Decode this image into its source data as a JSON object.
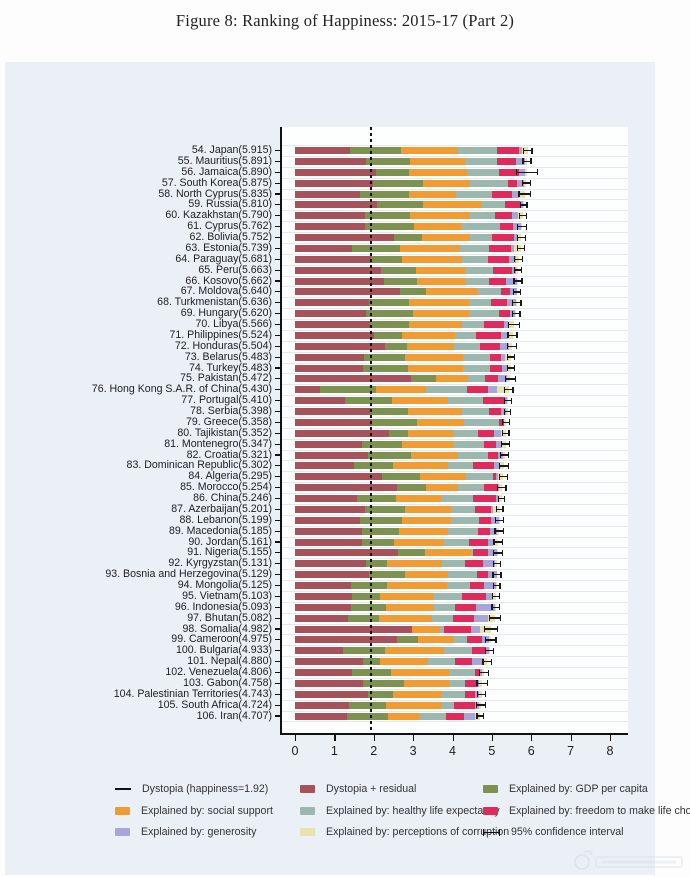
{
  "figure": {
    "title": "Figure 8: Ranking of Happiness: 2015-17 (Part 2)"
  },
  "legend": {
    "columns": [
      [
        {
          "label": "Dystopia (happiness=1.92)",
          "swatch": "line"
        },
        {
          "label": "Explained by: social support",
          "swatch": "box",
          "color": "#f19c33"
        },
        {
          "label": "Explained by: generosity",
          "swatch": "box",
          "color": "#a9a5d9"
        }
      ],
      [
        {
          "label": "Dystopia + residual",
          "swatch": "box",
          "color": "#a5525a"
        },
        {
          "label": "Explained by: healthy life expectancy",
          "swatch": "box",
          "color": "#9cb7ad"
        },
        {
          "label": "Explained by: perceptions of corruption",
          "swatch": "box",
          "color": "#e8e2ae"
        }
      ],
      [
        {
          "label": "Explained by: GDP per capita",
          "swatch": "box",
          "color": "#7d9150"
        },
        {
          "label": "Explained by: freedom to make life choices",
          "swatch": "box",
          "color": "#e12a5c"
        },
        {
          "label": "95% confidence interval",
          "swatch": "whisker"
        }
      ]
    ]
  },
  "chart_data": {
    "type": "bar",
    "orientation": "horizontal-stacked",
    "title": "Figure 8: Ranking of Happiness: 2015-17 (Part 2)",
    "xlabel": "",
    "ylabel": "",
    "xlim": [
      0,
      8.45
    ],
    "xticks": [
      0,
      1,
      2,
      3,
      4,
      5,
      6,
      7,
      8
    ],
    "grid": "horizontal-light",
    "dystopia_reference_line": 1.92,
    "segment_keys": [
      "dystopia_residual",
      "gdp_per_capita",
      "social_support",
      "healthy_life_expectancy",
      "freedom",
      "generosity",
      "corruption"
    ],
    "segment_colors": {
      "dystopia_residual": "#a5525a",
      "gdp_per_capita": "#7d9150",
      "social_support": "#f19c33",
      "healthy_life_expectancy": "#9cb7ad",
      "freedom": "#e12a5c",
      "generosity": "#a9a5d9",
      "corruption": "#e8e2ae"
    },
    "countries": [
      {
        "rank": 54,
        "name": "Japan",
        "score": 5.915,
        "segments": [
          1.389,
          1.294,
          1.462,
          0.988,
          0.553,
          0.079,
          0.15
        ],
        "ci": 0.12
      },
      {
        "rank": 55,
        "name": "Mauritius",
        "score": 5.891,
        "segments": [
          1.798,
          1.12,
          1.402,
          0.798,
          0.498,
          0.215,
          0.06
        ],
        "ci": 0.12
      },
      {
        "rank": 56,
        "name": "Jamaica",
        "score": 5.89,
        "segments": [
          2.064,
          0.819,
          1.493,
          0.809,
          0.516,
          0.144,
          0.045
        ],
        "ci": 0.28
      },
      {
        "rank": 57,
        "name": "South Korea",
        "score": 5.875,
        "segments": [
          1.98,
          1.266,
          1.204,
          0.955,
          0.244,
          0.175,
          0.051
        ],
        "ci": 0.12
      },
      {
        "rank": 58,
        "name": "North Cyprus",
        "score": 5.835,
        "segments": [
          1.658,
          1.229,
          1.211,
          0.909,
          0.495,
          0.179,
          0.154
        ],
        "ci": 0.16
      },
      {
        "rank": 59,
        "name": "Russia",
        "score": 5.81,
        "segments": [
          2.092,
          1.151,
          1.479,
          0.599,
          0.399,
          0.065,
          0.025
        ],
        "ci": 0.1
      },
      {
        "rank": 60,
        "name": "Kazakhstan",
        "score": 5.79,
        "segments": [
          1.777,
          1.143,
          1.516,
          0.631,
          0.454,
          0.148,
          0.121
        ],
        "ci": 0.1
      },
      {
        "rank": 61,
        "name": "Cyprus",
        "score": 5.762,
        "segments": [
          1.785,
          1.229,
          1.191,
          0.999,
          0.334,
          0.197,
          0.027
        ],
        "ci": 0.13
      },
      {
        "rank": 62,
        "name": "Bolivia",
        "score": 5.752,
        "segments": [
          2.519,
          0.71,
          1.216,
          0.568,
          0.537,
          0.126,
          0.076
        ],
        "ci": 0.11
      },
      {
        "rank": 63,
        "name": "Estonia",
        "score": 5.739,
        "segments": [
          1.457,
          1.2,
          1.532,
          0.737,
          0.553,
          0.086,
          0.174
        ],
        "ci": 0.1
      },
      {
        "rank": 64,
        "name": "Paraguay",
        "score": 5.681,
        "segments": [
          1.933,
          0.794,
          1.522,
          0.664,
          0.521,
          0.171,
          0.076
        ],
        "ci": 0.12
      },
      {
        "rank": 65,
        "name": "Peru",
        "score": 5.663,
        "segments": [
          2.182,
          0.884,
          1.249,
          0.723,
          0.483,
          0.099,
          0.043
        ],
        "ci": 0.11
      },
      {
        "rank": 66,
        "name": "Kosovo",
        "score": 5.662,
        "segments": [
          2.254,
          0.855,
          1.23,
          0.578,
          0.448,
          0.274,
          0.023
        ],
        "ci": 0.12
      },
      {
        "rank": 67,
        "name": "Moldova",
        "score": 5.64,
        "segments": [
          2.659,
          0.657,
          1.301,
          0.62,
          0.232,
          0.171,
          0.0
        ],
        "ci": 0.11
      },
      {
        "rank": 68,
        "name": "Turkmenistan",
        "score": 5.636,
        "segments": [
          1.882,
          1.024,
          1.509,
          0.555,
          0.421,
          0.217,
          0.028
        ],
        "ci": 0.12
      },
      {
        "rank": 69,
        "name": "Hungary",
        "score": 5.62,
        "segments": [
          1.815,
          1.171,
          1.433,
          0.755,
          0.283,
          0.124,
          0.039
        ],
        "ci": 0.11
      },
      {
        "rank": 70,
        "name": "Libya",
        "score": 5.566,
        "segments": [
          1.91,
          0.985,
          1.35,
          0.553,
          0.501,
          0.116,
          0.151
        ],
        "ci": 0.16
      },
      {
        "rank": 71,
        "name": "Philippines",
        "score": 5.524,
        "segments": [
          1.995,
          0.713,
          1.358,
          0.531,
          0.635,
          0.174,
          0.118
        ],
        "ci": 0.13
      },
      {
        "rank": 72,
        "name": "Honduras",
        "score": 5.504,
        "segments": [
          2.283,
          0.574,
          1.173,
          0.663,
          0.507,
          0.242,
          0.062
        ],
        "ci": 0.13
      },
      {
        "rank": 73,
        "name": "Belarus",
        "score": 5.483,
        "segments": [
          1.749,
          1.039,
          1.487,
          0.669,
          0.296,
          0.103,
          0.14
        ],
        "ci": 0.1
      },
      {
        "rank": 74,
        "name": "Turkey",
        "score": 5.483,
        "segments": [
          1.73,
          1.148,
          1.38,
          0.686,
          0.324,
          0.106,
          0.109
        ],
        "ci": 0.11
      },
      {
        "rank": 75,
        "name": "Pakistan",
        "score": 5.472,
        "segments": [
          2.938,
          0.652,
          0.81,
          0.424,
          0.334,
          0.216,
          0.098
        ],
        "ci": 0.15
      },
      {
        "rank": 76,
        "name": "Hong Kong S.A.R. of China",
        "score": 5.43,
        "segments": [
          0.644,
          1.405,
          1.29,
          1.03,
          0.524,
          0.246,
          0.291
        ],
        "ci": 0.12
      },
      {
        "rank": 77,
        "name": "Portugal",
        "score": 5.41,
        "segments": [
          1.275,
          1.188,
          1.429,
          0.884,
          0.562,
          0.055,
          0.017
        ],
        "ci": 0.1
      },
      {
        "rank": 78,
        "name": "Serbia",
        "score": 5.398,
        "segments": [
          1.904,
          0.975,
          1.369,
          0.685,
          0.288,
          0.134,
          0.043
        ],
        "ci": 0.1
      },
      {
        "rank": 79,
        "name": "Greece",
        "score": 5.358,
        "segments": [
          1.948,
          1.154,
          1.202,
          0.879,
          0.131,
          0.0,
          0.044
        ],
        "ci": 0.11
      },
      {
        "rank": 80,
        "name": "Tajikistan",
        "score": 5.352,
        "segments": [
          2.387,
          0.474,
          1.18,
          0.598,
          0.417,
          0.178,
          0.118
        ],
        "ci": 0.1
      },
      {
        "rank": 81,
        "name": "Montenegro",
        "score": 5.347,
        "segments": [
          1.702,
          1.024,
          1.279,
          0.805,
          0.296,
          0.153,
          0.088
        ],
        "ci": 0.12
      },
      {
        "rank": 82,
        "name": "Croatia",
        "score": 5.321,
        "segments": [
          1.846,
          1.097,
          1.19,
          0.776,
          0.25,
          0.123,
          0.039
        ],
        "ci": 0.12
      },
      {
        "rank": 83,
        "name": "Dominican Republic",
        "score": 5.302,
        "segments": [
          1.506,
          0.982,
          1.41,
          0.614,
          0.545,
          0.144,
          0.101
        ],
        "ci": 0.13
      },
      {
        "rank": 84,
        "name": "Algeria",
        "score": 5.295,
        "segments": [
          2.208,
          0.979,
          1.154,
          0.687,
          0.077,
          0.055,
          0.135
        ],
        "ci": 0.12
      },
      {
        "rank": 85,
        "name": "Morocco",
        "score": 5.254,
        "segments": [
          2.6,
          0.731,
          0.815,
          0.666,
          0.338,
          0.028,
          0.076
        ],
        "ci": 0.12
      },
      {
        "rank": 86,
        "name": "China",
        "score": 5.246,
        "segments": [
          1.587,
          0.989,
          1.142,
          0.799,
          0.597,
          0.029,
          0.103
        ],
        "ci": 0.1
      },
      {
        "rank": 87,
        "name": "Azerbaijan",
        "score": 5.201,
        "segments": [
          1.772,
          1.024,
          1.161,
          0.603,
          0.43,
          0.035,
          0.176
        ],
        "ci": 0.1
      },
      {
        "rank": 88,
        "name": "Lebanon",
        "score": 5.199,
        "segments": [
          1.647,
          1.074,
          1.229,
          0.735,
          0.288,
          0.199,
          0.027
        ],
        "ci": 0.12
      },
      {
        "rank": 89,
        "name": "Macedonia",
        "score": 5.185,
        "segments": [
          1.689,
          0.959,
          1.239,
          0.77,
          0.305,
          0.163,
          0.06
        ],
        "ci": 0.12
      },
      {
        "rank": 90,
        "name": "Jordan",
        "score": 5.161,
        "segments": [
          1.697,
          0.822,
          1.265,
          0.645,
          0.468,
          0.13,
          0.134
        ],
        "ci": 0.12
      },
      {
        "rank": 91,
        "name": "Nigeria",
        "score": 5.155,
        "segments": [
          2.615,
          0.689,
          1.172,
          0.043,
          0.376,
          0.233,
          0.027
        ],
        "ci": 0.13
      },
      {
        "rank": 92,
        "name": "Kyrgyzstan",
        "score": 5.131,
        "segments": [
          1.795,
          0.53,
          1.4,
          0.591,
          0.469,
          0.303,
          0.043
        ],
        "ci": 0.11
      },
      {
        "rank": 93,
        "name": "Bosnia and Herzegovina",
        "score": 5.129,
        "segments": [
          1.882,
          0.915,
          1.078,
          0.758,
          0.28,
          0.216,
          0.0
        ],
        "ci": 0.12
      },
      {
        "rank": 94,
        "name": "Mongolia",
        "score": 5.125,
        "segments": [
          1.428,
          0.914,
          1.517,
          0.575,
          0.361,
          0.298,
          0.032
        ],
        "ci": 0.1
      },
      {
        "rank": 95,
        "name": "Vietnam",
        "score": 5.103,
        "segments": [
          1.447,
          0.715,
          1.365,
          0.702,
          0.618,
          0.177,
          0.079
        ],
        "ci": 0.1
      },
      {
        "rank": 96,
        "name": "Indonesia",
        "score": 5.093,
        "segments": [
          1.417,
          0.899,
          1.215,
          0.522,
          0.538,
          0.484,
          0.018
        ],
        "ci": 0.11
      },
      {
        "rank": 97,
        "name": "Bhutan",
        "score": 5.082,
        "segments": [
          1.348,
          0.796,
          1.335,
          0.527,
          0.541,
          0.364,
          0.171
        ],
        "ci": 0.15
      },
      {
        "rank": 98,
        "name": "Somalia",
        "score": 4.982,
        "segments": [
          2.961,
          0.0,
          0.712,
          0.115,
          0.674,
          0.238,
          0.282
        ],
        "ci": 0.18
      },
      {
        "rank": 99,
        "name": "Cameroon",
        "score": 4.975,
        "segments": [
          2.58,
          0.549,
          0.91,
          0.331,
          0.381,
          0.187,
          0.037
        ],
        "ci": 0.15
      },
      {
        "rank": 100,
        "name": "Bulgaria",
        "score": 4.933,
        "segments": [
          1.22,
          1.054,
          1.515,
          0.712,
          0.359,
          0.064,
          0.009
        ],
        "ci": 0.12
      },
      {
        "rank": 101,
        "name": "Nepal",
        "score": 4.88,
        "segments": [
          1.718,
          0.446,
          1.226,
          0.677,
          0.439,
          0.285,
          0.089
        ],
        "ci": 0.12
      },
      {
        "rank": 102,
        "name": "Venezuela",
        "score": 4.806,
        "segments": [
          1.443,
          0.996,
          1.469,
          0.657,
          0.133,
          0.056,
          0.052
        ],
        "ci": 0.13
      },
      {
        "rank": 103,
        "name": "Gabon",
        "score": 4.758,
        "segments": [
          1.723,
          1.036,
          1.162,
          0.406,
          0.312,
          0.043,
          0.076
        ],
        "ci": 0.15
      },
      {
        "rank": 104,
        "name": "Palestinian Territories",
        "score": 4.743,
        "segments": [
          1.854,
          0.642,
          1.217,
          0.602,
          0.266,
          0.086,
          0.076
        ],
        "ci": 0.12
      },
      {
        "rank": 105,
        "name": "South Africa",
        "score": 4.724,
        "segments": [
          1.369,
          0.94,
          1.41,
          0.33,
          0.516,
          0.103,
          0.056
        ],
        "ci": 0.13
      },
      {
        "rank": 106,
        "name": "Iran",
        "score": 4.707,
        "segments": [
          1.312,
          1.059,
          0.771,
          0.691,
          0.459,
          0.282,
          0.133
        ],
        "ci": 0.1
      }
    ]
  }
}
